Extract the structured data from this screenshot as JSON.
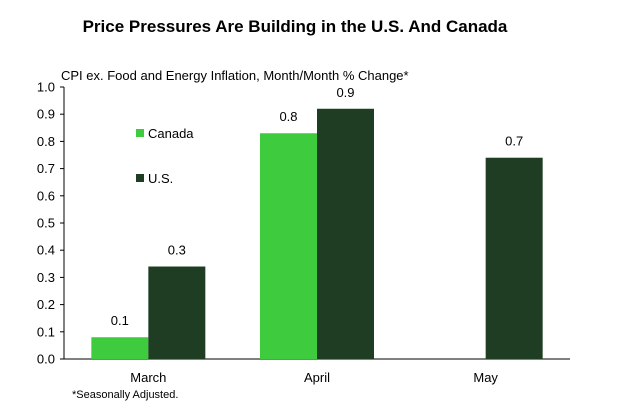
{
  "chart_data": {
    "type": "bar",
    "title": "Price Pressures Are Building in the U.S. And Canada",
    "subtitle": "CPI ex. Food and Energy Inflation, Month/Month % Change*",
    "footnote": "*Seasonally Adjusted.",
    "categories": [
      "March",
      "April",
      "May"
    ],
    "series": [
      {
        "name": "Canada",
        "color": "#3ecb3e",
        "values": [
          0.08,
          0.83,
          null
        ],
        "labels": [
          "0.1",
          "0.8",
          ""
        ]
      },
      {
        "name": "U.S.",
        "color": "#1e3d22",
        "values": [
          0.34,
          0.92,
          0.74
        ],
        "labels": [
          "0.3",
          "0.9",
          "0.7"
        ]
      }
    ],
    "ylim": [
      0.0,
      1.0
    ],
    "yticks": [
      "0.0",
      "0.1",
      "0.2",
      "0.3",
      "0.4",
      "0.5",
      "0.6",
      "0.7",
      "0.8",
      "0.9",
      "1.0"
    ],
    "ytick_values": [
      0.0,
      0.1,
      0.2,
      0.3,
      0.4,
      0.5,
      0.6,
      0.7,
      0.8,
      0.9,
      1.0
    ],
    "grid": false,
    "legend_placement": "upper-left inside plot"
  }
}
